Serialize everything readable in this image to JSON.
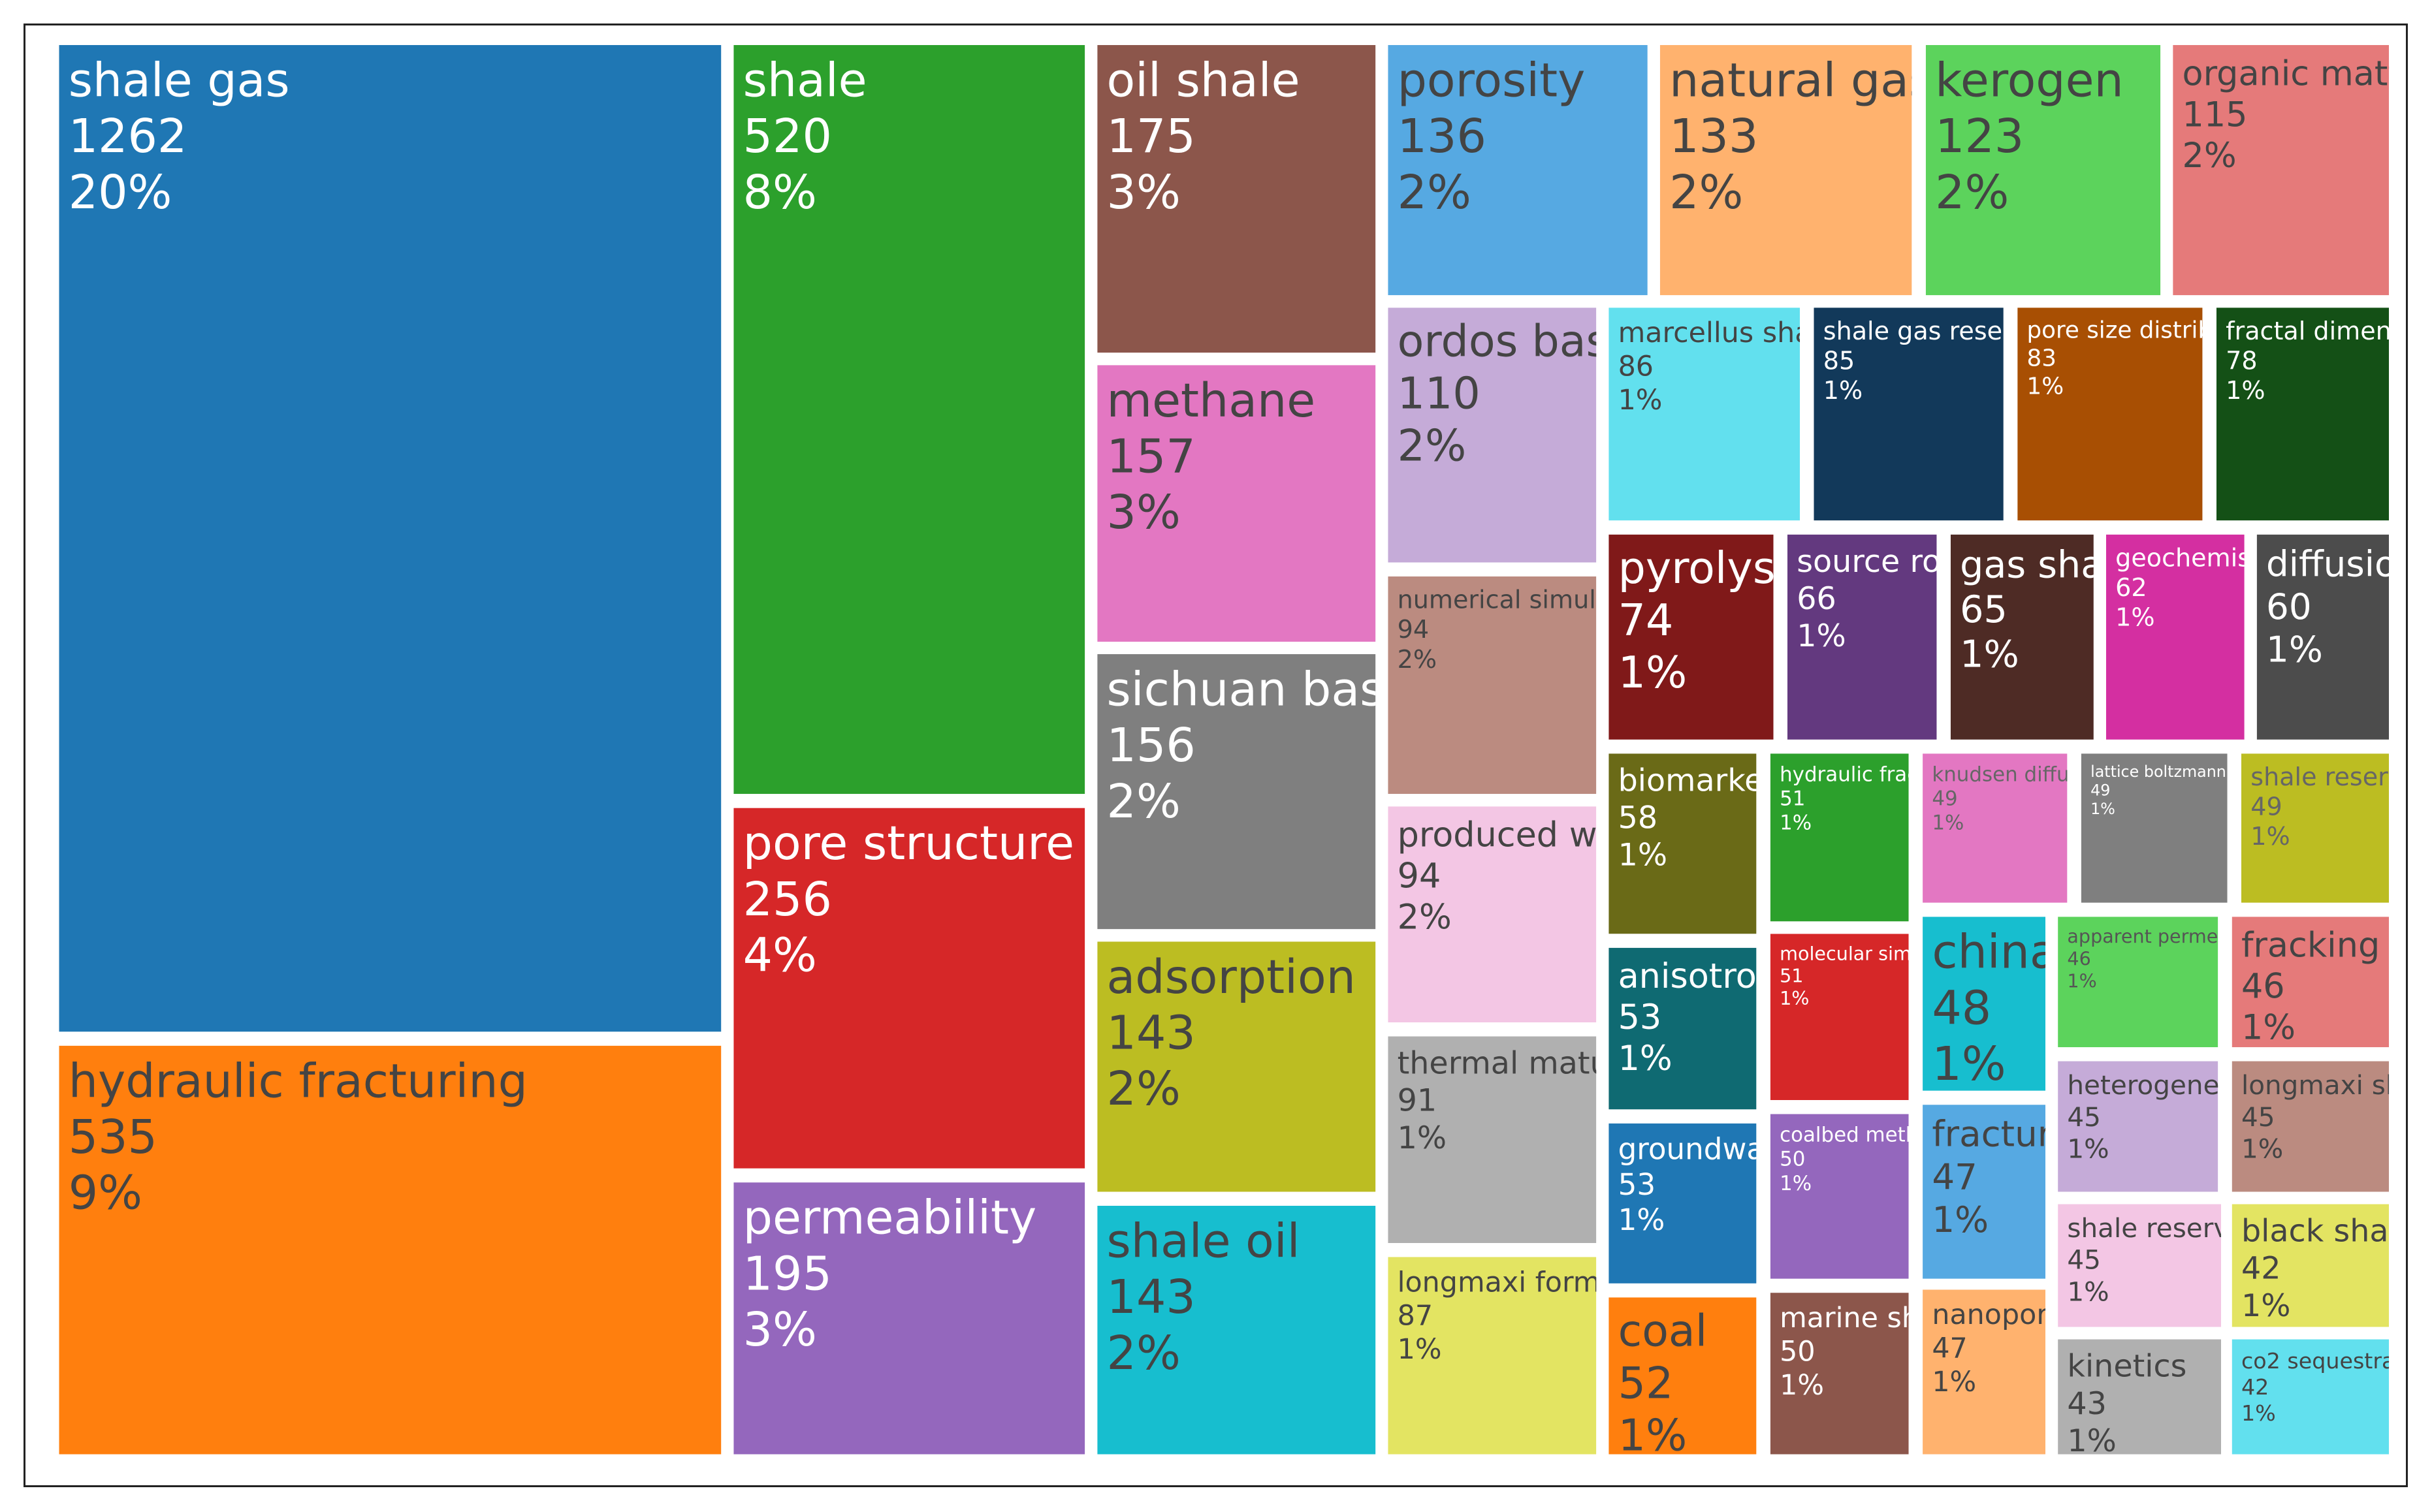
{
  "chart_data": {
    "type": "treemap",
    "items": [
      {
        "label": "shale gas",
        "value": 1262,
        "percent": "20%",
        "color": "#1f77b4",
        "text_color": "#ffffff"
      },
      {
        "label": "hydraulic fracturing",
        "value": 535,
        "percent": "9%",
        "color": "#ff7f0e",
        "text_color": "#444444"
      },
      {
        "label": "shale",
        "value": 520,
        "percent": "8%",
        "color": "#2ca02c",
        "text_color": "#ffffff"
      },
      {
        "label": "pore structure",
        "value": 256,
        "percent": "4%",
        "color": "#d62728",
        "text_color": "#ffffff"
      },
      {
        "label": "permeability",
        "value": 195,
        "percent": "3%",
        "color": "#9467bd",
        "text_color": "#ffffff"
      },
      {
        "label": "oil shale",
        "value": 175,
        "percent": "3%",
        "color": "#8c564b",
        "text_color": "#ffffff"
      },
      {
        "label": "methane",
        "value": 157,
        "percent": "3%",
        "color": "#e377c2",
        "text_color": "#444444"
      },
      {
        "label": "sichuan basin",
        "value": 156,
        "percent": "2%",
        "color": "#7f7f7f",
        "text_color": "#ffffff"
      },
      {
        "label": "adsorption",
        "value": 143,
        "percent": "2%",
        "color": "#bcbd22",
        "text_color": "#444444"
      },
      {
        "label": "shale oil",
        "value": 143,
        "percent": "2%",
        "color": "#17becf",
        "text_color": "#444444"
      },
      {
        "label": "porosity",
        "value": 136,
        "percent": "2%",
        "color": "#56a9e2",
        "text_color": "#444444"
      },
      {
        "label": "natural gas",
        "value": 133,
        "percent": "2%",
        "color": "#ffb26e",
        "text_color": "#444444"
      },
      {
        "label": "kerogen",
        "value": 123,
        "percent": "2%",
        "color": "#5cd35c",
        "text_color": "#444444"
      },
      {
        "label": "organic matter",
        "value": 115,
        "percent": "2%",
        "color": "#e57a7a",
        "text_color": "#444444"
      },
      {
        "label": "ordos basin",
        "value": 110,
        "percent": "2%",
        "color": "#c5abd8",
        "text_color": "#444444"
      },
      {
        "label": "numerical simulation",
        "value": 94,
        "percent": "2%",
        "color": "#bb8b80",
        "text_color": "#444444"
      },
      {
        "label": "produced water",
        "value": 94,
        "percent": "2%",
        "color": "#f3c6e4",
        "text_color": "#444444"
      },
      {
        "label": "thermal maturity",
        "value": 91,
        "percent": "1%",
        "color": "#b0b0b0",
        "text_color": "#444444"
      },
      {
        "label": "longmaxi formation",
        "value": 87,
        "percent": "1%",
        "color": "#e3e462",
        "text_color": "#444444"
      },
      {
        "label": "marcellus shale",
        "value": 86,
        "percent": "1%",
        "color": "#62e0ee",
        "text_color": "#444444"
      },
      {
        "label": "shale gas reservoir",
        "value": 85,
        "percent": "1%",
        "color": "#12395a",
        "text_color": "#ffffff"
      },
      {
        "label": "pore size distribution",
        "value": 83,
        "percent": "1%",
        "color": "#a84f03",
        "text_color": "#ffffff"
      },
      {
        "label": "fractal dimension",
        "value": 78,
        "percent": "1%",
        "color": "#145016",
        "text_color": "#ffffff"
      },
      {
        "label": "pyrolysis",
        "value": 74,
        "percent": "1%",
        "color": "#801919",
        "text_color": "#ffffff"
      },
      {
        "label": "source rock",
        "value": 66,
        "percent": "1%",
        "color": "#63397f",
        "text_color": "#ffffff"
      },
      {
        "label": "gas shale",
        "value": 65,
        "percent": "1%",
        "color": "#4e2b25",
        "text_color": "#ffffff"
      },
      {
        "label": "geochemistry",
        "value": 62,
        "percent": "1%",
        "color": "#d42fa1",
        "text_color": "#ffffff"
      },
      {
        "label": "diffusion",
        "value": 60,
        "percent": "1%",
        "color": "#4c4c4c",
        "text_color": "#ffffff"
      },
      {
        "label": "biomarkers",
        "value": 58,
        "percent": "1%",
        "color": "#6a6a17",
        "text_color": "#ffffff"
      },
      {
        "label": "hydraulic fracture",
        "value": 51,
        "percent": "1%",
        "color": "#2ca02c",
        "text_color": "#ffffff"
      },
      {
        "label": "knudsen diffusion",
        "value": 49,
        "percent": "1%",
        "color": "#e377c2",
        "text_color": "#666666"
      },
      {
        "label": "lattice boltzmann method",
        "value": 49,
        "percent": "1%",
        "color": "#7f7f7f",
        "text_color": "#ffffff"
      },
      {
        "label": "shale reservoir",
        "value": 49,
        "percent": "1%",
        "color": "#bcbd22",
        "text_color": "#666666"
      },
      {
        "label": "anisotropy",
        "value": 53,
        "percent": "1%",
        "color": "#0f6a72",
        "text_color": "#ffffff"
      },
      {
        "label": "molecular simulation",
        "value": 51,
        "percent": "1%",
        "color": "#d62728",
        "text_color": "#ffffff"
      },
      {
        "label": "china",
        "value": 48,
        "percent": "1%",
        "color": "#17becf",
        "text_color": "#444444"
      },
      {
        "label": "apparent permeability",
        "value": 46,
        "percent": "1%",
        "color": "#5cd35c",
        "text_color": "#555555"
      },
      {
        "label": "fracking",
        "value": 46,
        "percent": "1%",
        "color": "#e57a7a",
        "text_color": "#444444"
      },
      {
        "label": "groundwater",
        "value": 53,
        "percent": "1%",
        "color": "#1f77b4",
        "text_color": "#ffffff"
      },
      {
        "label": "coalbed methane",
        "value": 50,
        "percent": "1%",
        "color": "#9467bd",
        "text_color": "#ffffff"
      },
      {
        "label": "fracture",
        "value": 47,
        "percent": "1%",
        "color": "#56a9e2",
        "text_color": "#444444"
      },
      {
        "label": "heterogeneity",
        "value": 45,
        "percent": "1%",
        "color": "#c5abd8",
        "text_color": "#444444"
      },
      {
        "label": "longmaxi shale",
        "value": 45,
        "percent": "1%",
        "color": "#bb8b80",
        "text_color": "#444444"
      },
      {
        "label": "shale reservoirs",
        "value": 45,
        "percent": "1%",
        "color": "#f3c6e4",
        "text_color": "#444444"
      },
      {
        "label": "black shale",
        "value": 42,
        "percent": "1%",
        "color": "#e3e462",
        "text_color": "#444444"
      },
      {
        "label": "coal",
        "value": 52,
        "percent": "1%",
        "color": "#ff7f0e",
        "text_color": "#444444"
      },
      {
        "label": "marine shale",
        "value": 50,
        "percent": "1%",
        "color": "#8c564b",
        "text_color": "#ffffff"
      },
      {
        "label": "nanopores",
        "value": 47,
        "percent": "1%",
        "color": "#ffb26e",
        "text_color": "#444444"
      },
      {
        "label": "kinetics",
        "value": 43,
        "percent": "1%",
        "color": "#b0b0b0",
        "text_color": "#444444"
      },
      {
        "label": "co2 sequestration",
        "value": 42,
        "percent": "1%",
        "color": "#62e0ee",
        "text_color": "#444444"
      }
    ]
  }
}
